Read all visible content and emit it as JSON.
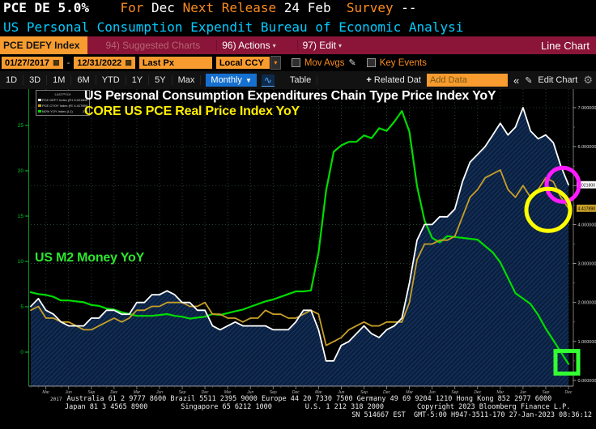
{
  "header": {
    "line1_segments": [
      {
        "t": "PCE DE ",
        "c": "#ffffff",
        "b": true
      },
      {
        "t": "5.0%",
        "c": "#ffffff",
        "b": true
      },
      {
        "t": "    ",
        "c": "#ffffff",
        "b": false
      },
      {
        "t": "For ",
        "c": "#fb8b1e",
        "b": false
      },
      {
        "t": "Dec ",
        "c": "#ffffff",
        "b": false
      },
      {
        "t": "Next Release ",
        "c": "#fb8b1e",
        "b": false
      },
      {
        "t": "24 Feb  ",
        "c": "#ffffff",
        "b": false
      },
      {
        "t": "Survey ",
        "c": "#fb8b1e",
        "b": false
      },
      {
        "t": "--",
        "c": "#ffffff",
        "b": false
      }
    ],
    "subtitle": "US Personal Consumption Expendit Bureau of Economic Analysi"
  },
  "ribbon": {
    "ticker_tab": "PCE DEFY Index",
    "suggested_charts": "94) Suggested Charts",
    "actions": "96) Actions",
    "edit": "97) Edit",
    "chart_type": "Line Chart"
  },
  "toolbar": {
    "date_from": "01/27/2017",
    "date_to": "12/31/2022",
    "price_field": "Last Px",
    "currency": "Local CCY",
    "mov_avgs_label": "Mov Avgs",
    "key_events_label": "Key Events"
  },
  "tabbar": {
    "ranges": [
      "1D",
      "3D",
      "1M",
      "6M",
      "YTD",
      "1Y",
      "5Y",
      "Max"
    ],
    "frequency": "Monthly",
    "table_label": "Table",
    "related_data_label": "Related Dat",
    "add_data_placeholder": "Add Data",
    "collapse_glyph": "«",
    "edit_chart_label": "Edit Chart"
  },
  "legend": {
    "title": "Last Price",
    "items": [
      {
        "label": "PCE DEFY Index (R1)",
        "value": "5.021800",
        "color": "#ffffff"
      },
      {
        "label": "PCE CYOY Index (R1)",
        "value": "4.417890",
        "color": "#c79f27"
      },
      {
        "label": "M2% YOY Index  (L1)",
        "value": "-1.3",
        "color": "#00dc00"
      }
    ]
  },
  "annotations": {
    "title_right_axis": "US Personal Consumption Expenditures Chain Type Price Index YoY",
    "subtitle_right_axis": "CORE US PCE Real Price Index YoY",
    "label_left_axis": "US M2 Money YoY"
  },
  "chart_data": {
    "type": "line",
    "n_points": 72,
    "x_range_start": "01/27/2017",
    "x_range_end": "12/31/2022",
    "month_names": [
      "Jan",
      "Feb",
      "Mar",
      "Apr",
      "May",
      "Jun",
      "Jul",
      "Aug",
      "Sep",
      "Oct",
      "Nov",
      "Dec"
    ],
    "x_tick_every_months": 3,
    "x_year_label": "2017",
    "right_axis": {
      "min": 0,
      "max": 7,
      "ticks": [
        7,
        6,
        5,
        4,
        3,
        2,
        1,
        0
      ],
      "decimals": 6
    },
    "left_axis": {
      "ticks": [
        25,
        20,
        15,
        10,
        5,
        0
      ]
    },
    "series": [
      {
        "name": "US Personal Consumption Expenditures Chain Type Price Index YoY",
        "ticker": "PCE DEFY Index",
        "axis": "right",
        "color": "#ffffff",
        "area_fill": true,
        "values": [
          1.9,
          2.1,
          1.8,
          1.7,
          1.5,
          1.4,
          1.4,
          1.4,
          1.6,
          1.6,
          1.8,
          1.8,
          1.7,
          1.7,
          2.0,
          2.0,
          2.2,
          2.2,
          2.3,
          2.2,
          2.0,
          2.0,
          1.8,
          1.8,
          1.4,
          1.3,
          1.4,
          1.5,
          1.4,
          1.4,
          1.4,
          1.4,
          1.3,
          1.3,
          1.3,
          1.5,
          1.8,
          1.8,
          1.3,
          0.5,
          0.5,
          0.9,
          1.0,
          1.2,
          1.4,
          1.2,
          1.1,
          1.3,
          1.4,
          1.6,
          2.5,
          3.6,
          4.0,
          4.0,
          4.2,
          4.2,
          4.4,
          5.1,
          5.6,
          5.8,
          6.0,
          6.3,
          6.6,
          6.3,
          6.5,
          7.0,
          6.4,
          6.2,
          6.3,
          6.1,
          5.5,
          5.0218
        ]
      },
      {
        "name": "CORE US PCE Real Price Index YoY",
        "ticker": "PCE CYOY Index",
        "axis": "right",
        "color": "#c79f27",
        "area_fill": false,
        "values": [
          1.8,
          1.9,
          1.6,
          1.6,
          1.5,
          1.5,
          1.4,
          1.3,
          1.3,
          1.4,
          1.5,
          1.6,
          1.5,
          1.6,
          1.8,
          1.8,
          1.9,
          1.9,
          2.0,
          2.0,
          2.0,
          1.9,
          1.9,
          2.0,
          1.7,
          1.7,
          1.6,
          1.6,
          1.5,
          1.6,
          1.6,
          1.8,
          1.7,
          1.7,
          1.6,
          1.6,
          1.7,
          1.8,
          1.7,
          0.9,
          1.0,
          1.1,
          1.3,
          1.4,
          1.5,
          1.4,
          1.4,
          1.5,
          1.5,
          1.5,
          2.0,
          3.1,
          3.5,
          3.5,
          3.6,
          3.6,
          3.7,
          4.2,
          4.7,
          4.9,
          5.2,
          5.3,
          5.4,
          4.9,
          4.7,
          5.0,
          4.7,
          4.9,
          5.2,
          5.1,
          4.7,
          4.41789
        ]
      },
      {
        "name": "US M2 Money YoY",
        "ticker": "M2% YOY Index",
        "axis": "left",
        "color": "#00dc00",
        "area_fill": false,
        "values": [
          6.6,
          6.4,
          6.3,
          6.1,
          5.7,
          5.7,
          5.6,
          5.5,
          5.2,
          5.1,
          4.8,
          4.7,
          4.4,
          4.2,
          4.0,
          4.0,
          4.0,
          4.1,
          4.2,
          4.0,
          3.9,
          3.7,
          3.8,
          3.9,
          4.2,
          4.1,
          4.3,
          4.5,
          4.7,
          5.0,
          5.3,
          5.6,
          5.8,
          6.1,
          6.4,
          6.7,
          6.7,
          6.8,
          11.0,
          17.8,
          22.1,
          22.8,
          23.2,
          23.2,
          23.9,
          23.6,
          24.7,
          24.4,
          25.4,
          26.6,
          24.3,
          18.3,
          14.5,
          12.6,
          12.1,
          12.8,
          12.7,
          12.6,
          12.5,
          12.4,
          11.7,
          11.0,
          9.9,
          8.2,
          6.5,
          5.9,
          5.3,
          4.1,
          2.6,
          1.3,
          0.0,
          -1.3
        ]
      }
    ],
    "end_labels": [
      {
        "series_index": 0,
        "text": "5.021800",
        "bg": "#ffffff"
      },
      {
        "series_index": 1,
        "text": "4.417890",
        "bg": "#c79f27"
      }
    ],
    "markers": [
      {
        "shape": "circle",
        "series_index": 0,
        "color": "#ff1aff"
      },
      {
        "shape": "circle",
        "series_index": 1,
        "color": "#ffff00"
      },
      {
        "shape": "square",
        "series_index": 2,
        "color": "#33ff33"
      }
    ]
  },
  "footer": {
    "year_label": "2017",
    "line1": "Australia 61 2 9777 8600 Brazil 5511 2395 9000 Europe 44 20 7330 7500 Germany 49 69 9204 1210 Hong Kong 852 2977 6000",
    "line2": "Japan 81 3 4565 8900        Singapore 65 6212 1000        U.S. 1 212 318 2000        Copyright 2023 Bloomberg Finance L.P.",
    "line3": "SN 514667 EST  GMT-5:00 H947-3511-170 27-Jan-2023 08:36:12"
  },
  "colors": {
    "orange": "#fb8b1e",
    "orange_box": "#f89c2f",
    "ribbon_red": "#8a1538",
    "cyan": "#00ccff",
    "blue": "#1670d0",
    "navy_fill": "#0b2040",
    "magenta_marker": "#ff1aff",
    "yellow_marker": "#ffff00",
    "green_marker": "#33ff33"
  }
}
